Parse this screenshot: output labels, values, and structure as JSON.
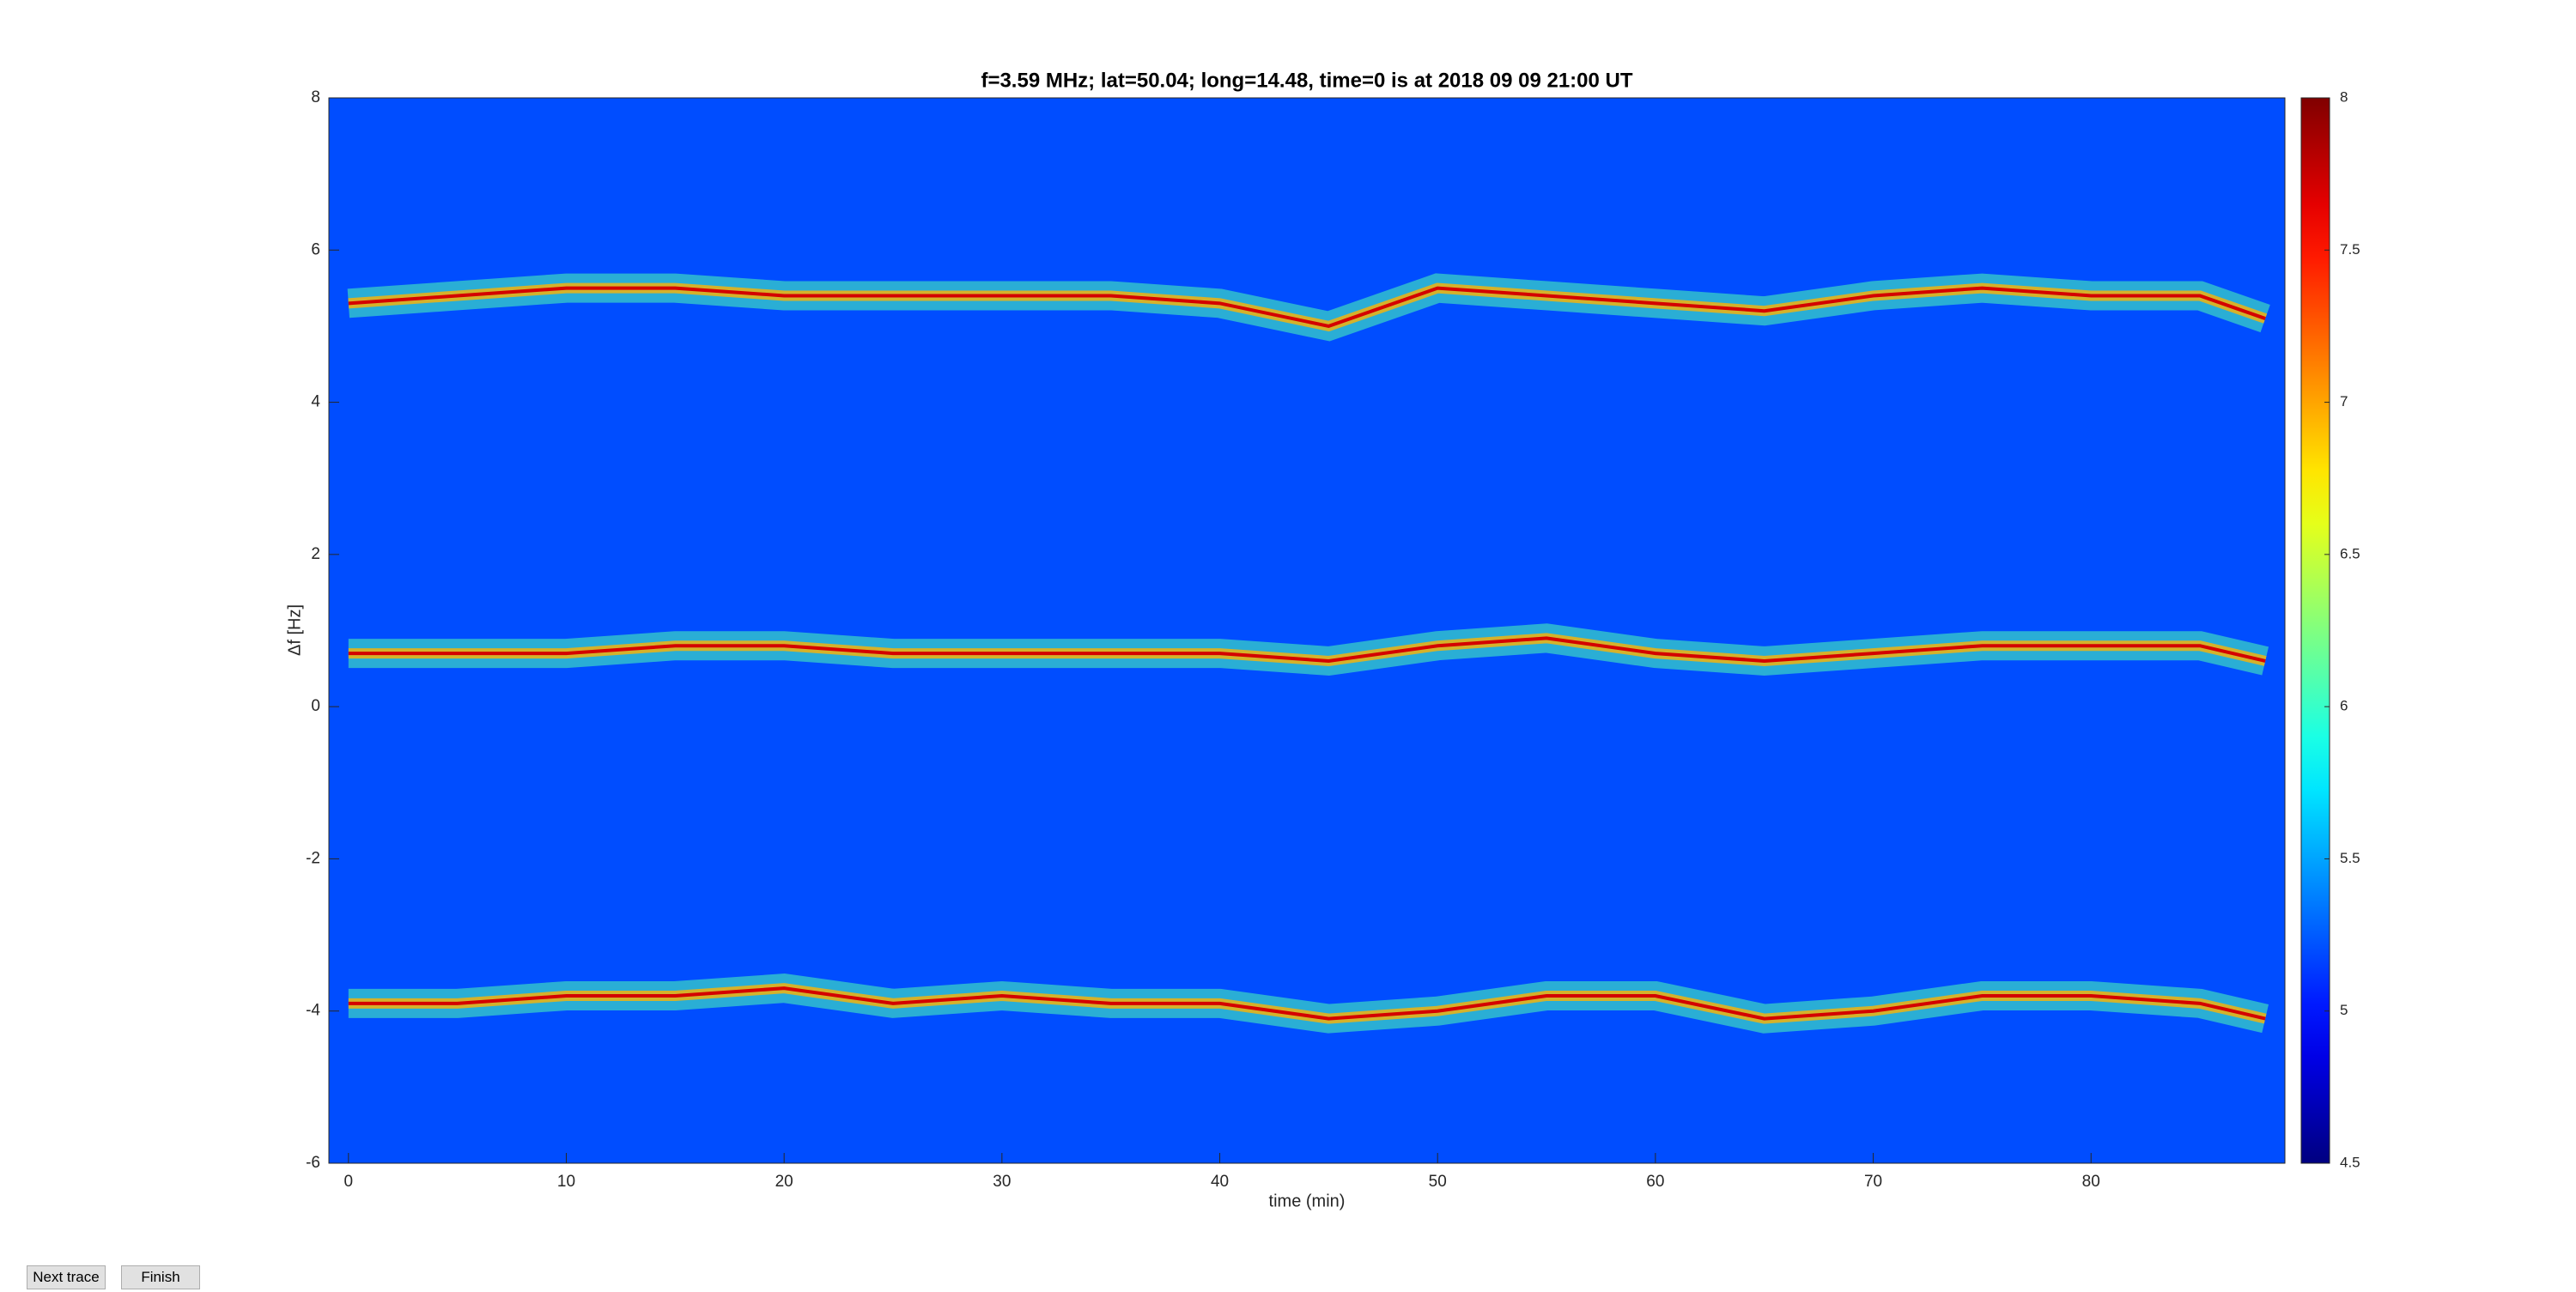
{
  "chart_data": {
    "type": "spectrogram",
    "title": "f=3.59 MHz;  lat=50.04; long=14.48, time=0 is at 2018 09 09 21:00 UT",
    "xlabel": "time (min)",
    "ylabel": "Δf [Hz]",
    "xlim": [
      -0.9,
      88.9
    ],
    "ylim": [
      -6,
      8
    ],
    "xticks": [
      0,
      10,
      20,
      30,
      40,
      50,
      60,
      70,
      80
    ],
    "yticks": [
      -6,
      -4,
      -2,
      0,
      2,
      4,
      6,
      8
    ],
    "colormap": "jet",
    "clim": [
      4.5,
      8
    ],
    "cticks": [
      4.5,
      5,
      5.5,
      6,
      6.5,
      7,
      7.5,
      8
    ],
    "x": [
      0,
      5,
      10,
      15,
      20,
      25,
      30,
      35,
      40,
      45,
      50,
      55,
      60,
      65,
      70,
      75,
      80,
      85,
      88
    ],
    "series": [
      {
        "color": "#d40000",
        "values": [
          5.3,
          5.4,
          5.5,
          5.5,
          5.4,
          5.4,
          5.4,
          5.4,
          5.3,
          5.0,
          5.5,
          5.4,
          5.3,
          5.2,
          5.4,
          5.5,
          5.4,
          5.4,
          5.1
        ]
      },
      {
        "color": "#d40000",
        "values": [
          0.7,
          0.7,
          0.7,
          0.8,
          0.8,
          0.7,
          0.7,
          0.7,
          0.7,
          0.6,
          0.8,
          0.9,
          0.7,
          0.6,
          0.7,
          0.8,
          0.8,
          0.8,
          0.6
        ]
      },
      {
        "color": "#d40000",
        "values": [
          -3.9,
          -3.9,
          -3.8,
          -3.8,
          -3.7,
          -3.9,
          -3.8,
          -3.9,
          -3.9,
          -4.1,
          -4.0,
          -3.8,
          -3.8,
          -4.1,
          -4.0,
          -3.8,
          -3.8,
          -3.9,
          -4.1
        ]
      }
    ]
  },
  "ui": {
    "buttons": [
      "Next trace",
      "Finish"
    ]
  }
}
